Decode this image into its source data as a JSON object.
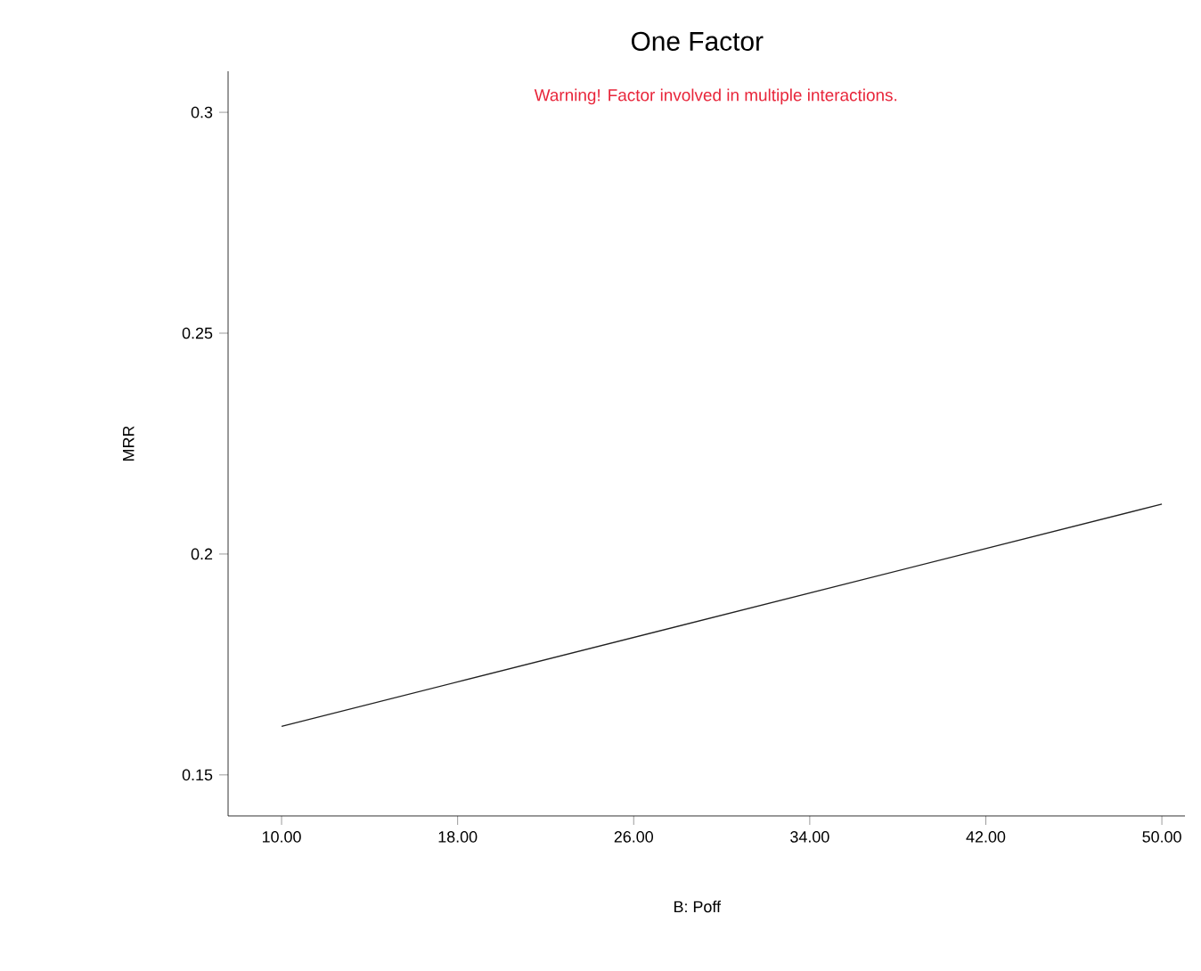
{
  "chart_data": {
    "type": "line",
    "title": "One Factor",
    "xlabel": "B: Poff",
    "ylabel": "MRR",
    "annotations": [
      "Warning! Factor involved in multiple interactions."
    ],
    "x": [
      10,
      50
    ],
    "series": [
      {
        "color": "#202020",
        "values": [
          0.161,
          0.2113
        ]
      }
    ],
    "xlim": [
      7.57,
      51.05
    ],
    "ylim": [
      0.1407,
      0.3093
    ],
    "xticks": [
      {
        "value": 10,
        "label": "10.00"
      },
      {
        "value": 18,
        "label": "18.00"
      },
      {
        "value": 26,
        "label": "26.00"
      },
      {
        "value": 34,
        "label": "34.00"
      },
      {
        "value": 42,
        "label": "42.00"
      },
      {
        "value": 50,
        "label": "50.00"
      }
    ],
    "yticks": [
      0.15,
      0.2,
      0.25,
      0.3
    ],
    "grid": false,
    "marker": "none",
    "line_style": "solid"
  }
}
